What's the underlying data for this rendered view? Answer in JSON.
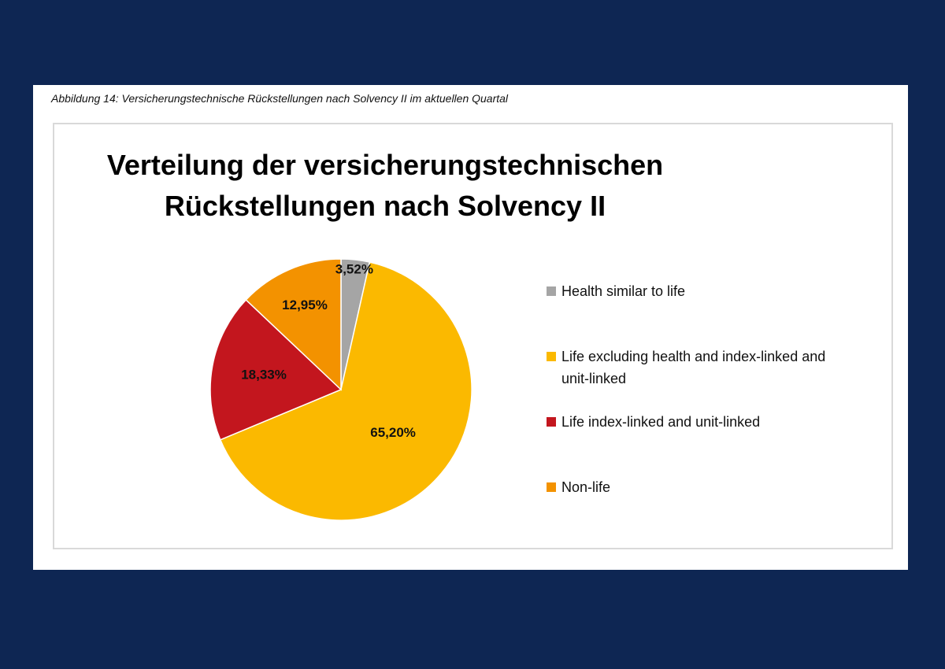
{
  "caption": "Abbildung 14: Versicherungstechnische Rückstellungen nach Solvency II im aktuellen Quartal",
  "chart_data": {
    "type": "pie",
    "title_lines": [
      "Verteilung der versicherungstechnischen",
      "Rückstellungen nach Solvency II"
    ],
    "slices": [
      {
        "name": "Health similar to life",
        "value": 3.52,
        "label": "3,52%",
        "color": "#a5a5a5"
      },
      {
        "name": "Life excluding health and index-linked and unit-linked",
        "value": 65.2,
        "label": "65,20%",
        "color": "#fbb900"
      },
      {
        "name": "Life index-linked and unit-linked",
        "value": 18.33,
        "label": "18,33%",
        "color": "#c3161e"
      },
      {
        "name": "Non-life",
        "value": 12.95,
        "label": "12,95%",
        "color": "#f39200"
      }
    ],
    "start_angle_deg": 0,
    "direction": "clockwise",
    "legend_position": "right"
  }
}
